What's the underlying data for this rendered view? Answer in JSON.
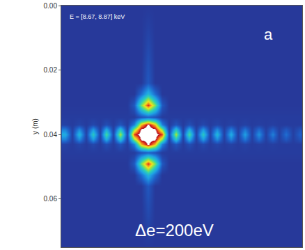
{
  "chart_data": {
    "type": "heatmap",
    "ylabel": "y (m)",
    "annotations": [
      "E = [8.67, 8.87] keV",
      "a",
      "Δe=200eV"
    ],
    "x": [
      -0.0258,
      -0.02365,
      -0.0215,
      -0.01935,
      -0.0172,
      -0.01505,
      -0.0129,
      -0.01075,
      -0.0086,
      -0.00645,
      -0.0043,
      -0.00215,
      0,
      0.00215,
      0.0043,
      0.00645,
      0.0086,
      0.01075,
      0.0129,
      0.01505,
      0.0172,
      0.01935,
      0.0215,
      0.02365,
      0.0258,
      0.02795,
      0.0301,
      0.03225,
      0.0344,
      0.03655,
      0.0387,
      0.04085,
      0.043,
      0.04515,
      0.0473
    ],
    "y": [
      0,
      0.024,
      0.0275,
      0.031,
      0.0345,
      0.037,
      0.0385,
      0.04,
      0.0415,
      0.043,
      0.0455,
      0.049,
      0.0525,
      0.056,
      0.075
    ],
    "z": [
      [
        0,
        0,
        0,
        0,
        0,
        0,
        0,
        0,
        0,
        0,
        0,
        0,
        0,
        0,
        0,
        0,
        0,
        0,
        0,
        0,
        0,
        0,
        0,
        0,
        0,
        0,
        0,
        0,
        0,
        0,
        0,
        0,
        0,
        0,
        0
      ],
      [
        0,
        0,
        0,
        0,
        0,
        0,
        0,
        0,
        0,
        0,
        0,
        0,
        0.1,
        0,
        0,
        0,
        0,
        0,
        0,
        0,
        0,
        0,
        0,
        0,
        0,
        0,
        0,
        0,
        0,
        0,
        0,
        0,
        0,
        0,
        0
      ],
      [
        0,
        0,
        0,
        0,
        0,
        0,
        0,
        0,
        0,
        0,
        0,
        0.15,
        0.35,
        0.15,
        0,
        0,
        0,
        0,
        0,
        0,
        0,
        0,
        0,
        0,
        0,
        0,
        0,
        0,
        0,
        0,
        0,
        0,
        0,
        0,
        0
      ],
      [
        0,
        0,
        0,
        0,
        0,
        0,
        0,
        0,
        0,
        0,
        0.1,
        0.55,
        0.9,
        0.55,
        0.1,
        0,
        0,
        0,
        0,
        0,
        0,
        0,
        0,
        0,
        0,
        0,
        0,
        0,
        0,
        0,
        0,
        0,
        0,
        0,
        0
      ],
      [
        0.01,
        0.01,
        0.01,
        0.01,
        0.01,
        0.01,
        0.01,
        0.01,
        0.01,
        0.01,
        0.01,
        0.08,
        0.12,
        0.08,
        0.01,
        0.01,
        0.01,
        0.01,
        0.01,
        0.01,
        0.01,
        0.01,
        0.01,
        0.01,
        0.01,
        0.01,
        0.01,
        0.01,
        0.01,
        0.01,
        0.01,
        0.01,
        0.01,
        0.01,
        0.01
      ],
      [
        0.03,
        0.01,
        0.04,
        0.01,
        0.05,
        0.01,
        0.07,
        0.01,
        0.09,
        0.01,
        0.2,
        0.75,
        0.97,
        0.75,
        0.2,
        0.01,
        0.09,
        0.01,
        0.07,
        0.01,
        0.05,
        0.01,
        0.04,
        0.01,
        0.03,
        0.01,
        0.03,
        0.01,
        0.02,
        0.01,
        0.02,
        0.01,
        0.01,
        0.01,
        0.01
      ],
      [
        0.2,
        0.02,
        0.23,
        0.02,
        0.27,
        0.02,
        0.32,
        0.02,
        0.4,
        0.02,
        0.6,
        0.97,
        1,
        0.97,
        0.6,
        0.02,
        0.4,
        0.02,
        0.32,
        0.02,
        0.27,
        0.02,
        0.23,
        0.02,
        0.2,
        0.02,
        0.18,
        0.02,
        0.15,
        0.02,
        0.12,
        0.02,
        0.1,
        0.02,
        0.08
      ],
      [
        0.32,
        0.02,
        0.36,
        0.03,
        0.42,
        0.03,
        0.5,
        0.04,
        0.62,
        0.05,
        0.88,
        1,
        1,
        1,
        0.88,
        0.05,
        0.62,
        0.04,
        0.5,
        0.03,
        0.42,
        0.03,
        0.36,
        0.02,
        0.32,
        0.02,
        0.28,
        0.02,
        0.24,
        0.02,
        0.2,
        0.02,
        0.16,
        0.02,
        0.12
      ],
      [
        0.2,
        0.02,
        0.23,
        0.02,
        0.27,
        0.02,
        0.32,
        0.02,
        0.4,
        0.02,
        0.6,
        0.97,
        1,
        0.97,
        0.6,
        0.02,
        0.4,
        0.02,
        0.32,
        0.02,
        0.27,
        0.02,
        0.23,
        0.02,
        0.2,
        0.02,
        0.18,
        0.02,
        0.15,
        0.02,
        0.12,
        0.02,
        0.1,
        0.02,
        0.08
      ],
      [
        0.03,
        0.01,
        0.04,
        0.01,
        0.05,
        0.01,
        0.07,
        0.01,
        0.09,
        0.01,
        0.2,
        0.75,
        0.97,
        0.75,
        0.2,
        0.01,
        0.09,
        0.01,
        0.07,
        0.01,
        0.05,
        0.01,
        0.04,
        0.01,
        0.03,
        0.01,
        0.03,
        0.01,
        0.02,
        0.01,
        0.02,
        0.01,
        0.01,
        0.01,
        0.01
      ],
      [
        0.01,
        0.01,
        0.01,
        0.01,
        0.01,
        0.01,
        0.01,
        0.01,
        0.01,
        0.01,
        0.01,
        0.08,
        0.12,
        0.08,
        0.01,
        0.01,
        0.01,
        0.01,
        0.01,
        0.01,
        0.01,
        0.01,
        0.01,
        0.01,
        0.01,
        0.01,
        0.01,
        0.01,
        0.01,
        0.01,
        0.01,
        0.01,
        0.01,
        0.01,
        0.01
      ],
      [
        0,
        0,
        0,
        0,
        0,
        0,
        0,
        0,
        0,
        0,
        0.1,
        0.55,
        0.9,
        0.55,
        0.1,
        0,
        0,
        0,
        0,
        0,
        0,
        0,
        0,
        0,
        0,
        0,
        0,
        0,
        0,
        0,
        0,
        0,
        0,
        0,
        0
      ],
      [
        0,
        0,
        0,
        0,
        0,
        0,
        0,
        0,
        0,
        0,
        0,
        0.15,
        0.35,
        0.15,
        0,
        0,
        0,
        0,
        0,
        0,
        0,
        0,
        0,
        0,
        0,
        0,
        0,
        0,
        0,
        0,
        0,
        0,
        0,
        0,
        0
      ],
      [
        0,
        0,
        0,
        0,
        0,
        0,
        0,
        0,
        0,
        0,
        0,
        0,
        0.1,
        0,
        0,
        0,
        0,
        0,
        0,
        0,
        0,
        0,
        0,
        0,
        0,
        0,
        0,
        0,
        0,
        0,
        0,
        0,
        0,
        0,
        0
      ],
      [
        0,
        0,
        0,
        0,
        0,
        0,
        0,
        0,
        0,
        0,
        0,
        0,
        0,
        0,
        0,
        0,
        0,
        0,
        0,
        0,
        0,
        0,
        0,
        0,
        0,
        0,
        0,
        0,
        0,
        0,
        0,
        0,
        0,
        0,
        0
      ]
    ],
    "zlim": [
      0,
      1
    ],
    "xlim": [
      -0.027,
      0.048
    ],
    "ylim": [
      0,
      0.075
    ],
    "yticks": [
      {
        "value": 0,
        "label": "0.00"
      },
      {
        "value": 0.02,
        "label": "0.02"
      },
      {
        "value": 0.04,
        "label": "0.04"
      },
      {
        "value": 0.06,
        "label": "0.06"
      }
    ],
    "grid": false,
    "tick_labels": "y"
  }
}
